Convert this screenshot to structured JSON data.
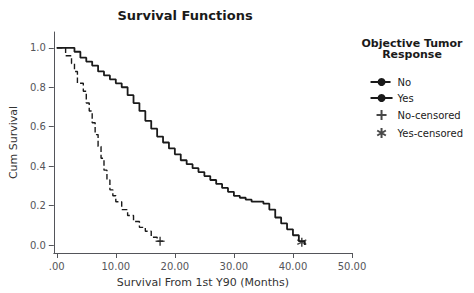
{
  "chart_data": {
    "type": "line",
    "title": "Survival Functions",
    "xlabel": "Survival From 1st Y90 (Months)",
    "ylabel": "Cum Survival",
    "legend_title": "Objective Tumor\nResponse",
    "legend": "right",
    "grid": false,
    "xlim": [
      -0.5,
      50
    ],
    "ylim": [
      -0.04,
      1.08
    ],
    "xticks": [
      {
        "value": 0,
        "label": ".00"
      },
      {
        "value": 10,
        "label": "10.00"
      },
      {
        "value": 20,
        "label": "20.00"
      },
      {
        "value": 30,
        "label": "30.00"
      },
      {
        "value": 40,
        "label": "40.00"
      },
      {
        "value": 50,
        "label": "50.00"
      }
    ],
    "yticks": [
      {
        "value": 0,
        "label": "0.0"
      },
      0.2,
      0.4,
      0.6,
      0.8,
      {
        "value": 1,
        "label": "1.0"
      }
    ],
    "series": [
      {
        "name": "No",
        "type": "step",
        "line_style": "dashed",
        "color": "#1a1a1a",
        "x": [
          0,
          1.0,
          1.5,
          2.5,
          3.0,
          3.5,
          4.5,
          5.0,
          5.5,
          6.0,
          6.5,
          7.0,
          7.5,
          8.0,
          8.5,
          9.0,
          9.5,
          10.0,
          11.0,
          12.0,
          13.0,
          14.0,
          15.0,
          16.0,
          17.0,
          18.0
        ],
        "values": [
          1.0,
          1.0,
          0.96,
          0.92,
          0.88,
          0.82,
          0.78,
          0.72,
          0.68,
          0.62,
          0.56,
          0.5,
          0.44,
          0.38,
          0.33,
          0.28,
          0.25,
          0.22,
          0.18,
          0.15,
          0.12,
          0.09,
          0.07,
          0.04,
          0.02,
          0.02
        ]
      },
      {
        "name": "Yes",
        "type": "step",
        "line_style": "solid",
        "color": "#1a1a1a",
        "x": [
          0,
          2.0,
          3.0,
          4.0,
          5.0,
          6.0,
          7.0,
          8.0,
          9.0,
          10.0,
          11.0,
          12.0,
          13.0,
          14.0,
          15.0,
          16.0,
          17.0,
          18.0,
          19.0,
          20.0,
          21.0,
          22.0,
          23.0,
          24.0,
          25.0,
          26.0,
          27.0,
          28.0,
          29.0,
          30.0,
          31.0,
          32.0,
          33.0,
          34.0,
          35.0,
          36.0,
          37.0,
          38.0,
          39.0,
          40.0,
          41.0,
          42.0
        ],
        "values": [
          1.0,
          1.0,
          0.98,
          0.95,
          0.93,
          0.91,
          0.88,
          0.86,
          0.84,
          0.82,
          0.8,
          0.76,
          0.72,
          0.68,
          0.63,
          0.59,
          0.55,
          0.52,
          0.49,
          0.46,
          0.43,
          0.41,
          0.39,
          0.37,
          0.35,
          0.33,
          0.31,
          0.29,
          0.27,
          0.25,
          0.24,
          0.23,
          0.22,
          0.22,
          0.21,
          0.18,
          0.14,
          0.11,
          0.08,
          0.05,
          0.02,
          0.0
        ]
      },
      {
        "name": "No-censored",
        "type": "scatter",
        "marker": "plus",
        "color": "#1a1a1a",
        "x": [
          17.5
        ],
        "values": [
          0.02
        ]
      },
      {
        "name": "Yes-censored",
        "type": "scatter",
        "marker": "asterisk",
        "color": "#1a1a1a",
        "x": [
          41.5
        ],
        "values": [
          0.015
        ]
      }
    ]
  }
}
